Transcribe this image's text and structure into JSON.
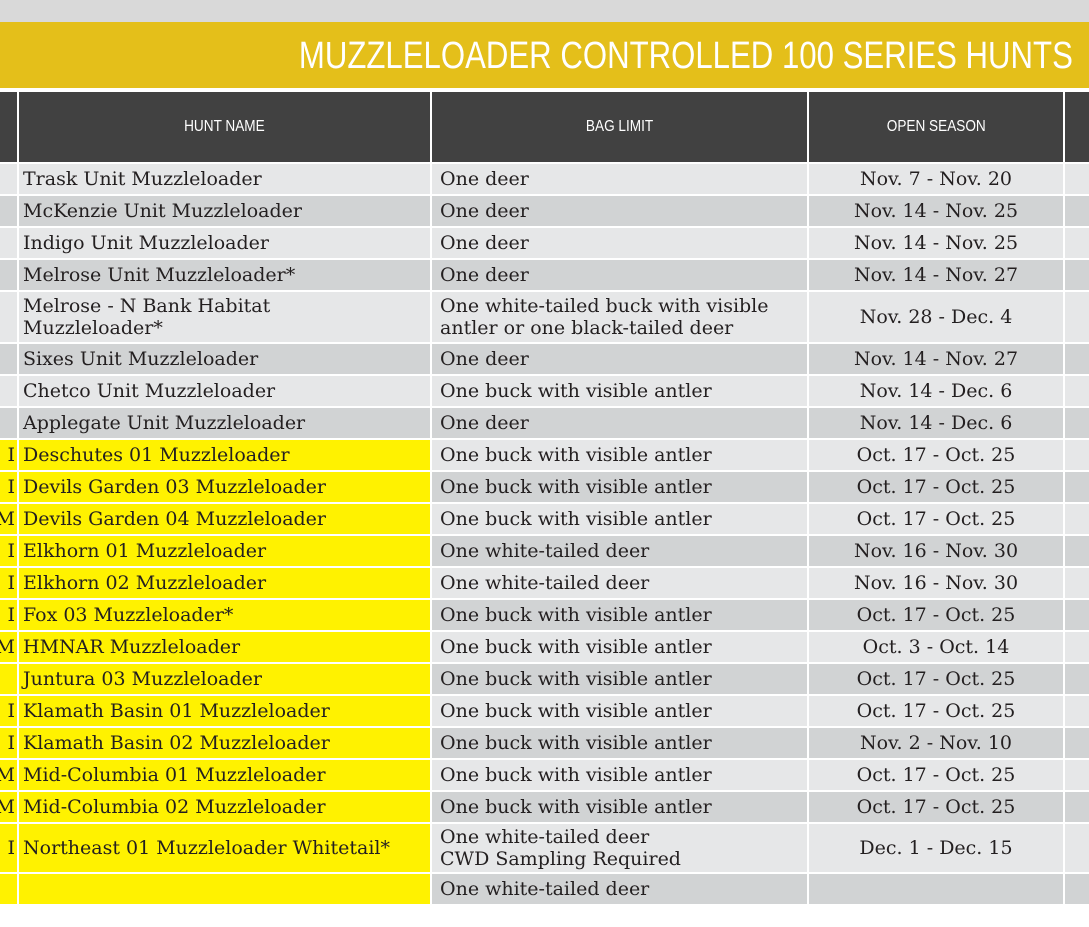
{
  "banner": {
    "title": "MUZZLELOADER CONTROLLED 100 SERIES HUNTS"
  },
  "table": {
    "headers": {
      "hunt_name": "HUNT NAME",
      "bag_limit": "BAG LIMIT",
      "open_season": "OPEN SEASON"
    },
    "colors": {
      "header_bg": "#414141",
      "banner_bg": "#e4bf1a",
      "row_light": "#e6e7e8",
      "row_dark": "#d1d3d4",
      "highlight": "#fff200"
    },
    "rows": [
      {
        "prefix": "",
        "hunt_name": [
          "Trask Unit Muzzleloader"
        ],
        "bag_limit": [
          "One deer"
        ],
        "open_season": "Nov. 7 - Nov. 20",
        "highlighted": false
      },
      {
        "prefix": "",
        "hunt_name": [
          "McKenzie Unit Muzzleloader"
        ],
        "bag_limit": [
          "One deer"
        ],
        "open_season": "Nov. 14 - Nov. 25",
        "highlighted": false
      },
      {
        "prefix": "",
        "hunt_name": [
          "Indigo Unit Muzzleloader"
        ],
        "bag_limit": [
          "One deer"
        ],
        "open_season": "Nov. 14 - Nov. 25",
        "highlighted": false
      },
      {
        "prefix": "",
        "hunt_name": [
          "Melrose Unit Muzzleloader*"
        ],
        "bag_limit": [
          "One deer"
        ],
        "open_season": "Nov. 14 - Nov. 27",
        "highlighted": false
      },
      {
        "prefix": "",
        "hunt_name": [
          "Melrose - N Bank Habitat",
          "Muzzleloader*"
        ],
        "bag_limit": [
          "One white-tailed buck with visible",
          "antler or one black-tailed deer"
        ],
        "open_season": "Nov. 28 - Dec. 4",
        "highlighted": false
      },
      {
        "prefix": "",
        "hunt_name": [
          "Sixes Unit Muzzleloader"
        ],
        "bag_limit": [
          "One deer"
        ],
        "open_season": "Nov. 14 - Nov. 27",
        "highlighted": false
      },
      {
        "prefix": "",
        "hunt_name": [
          "Chetco Unit Muzzleloader"
        ],
        "bag_limit": [
          "One buck with visible antler"
        ],
        "open_season": "Nov. 14 - Dec. 6",
        "highlighted": false
      },
      {
        "prefix": "",
        "hunt_name": [
          "Applegate Unit Muzzleloader"
        ],
        "bag_limit": [
          "One deer"
        ],
        "open_season": "Nov. 14 - Dec. 6",
        "highlighted": false
      },
      {
        "prefix": "I",
        "hunt_name": [
          "Deschutes 01 Muzzleloader"
        ],
        "bag_limit": [
          "One buck with visible antler"
        ],
        "open_season": "Oct. 17 - Oct. 25",
        "highlighted": true
      },
      {
        "prefix": "I",
        "hunt_name": [
          "Devils Garden 03 Muzzleloader"
        ],
        "bag_limit": [
          "One buck with visible antler"
        ],
        "open_season": "Oct. 17 - Oct. 25",
        "highlighted": true
      },
      {
        "prefix": "M",
        "hunt_name": [
          "Devils Garden 04 Muzzleloader"
        ],
        "bag_limit": [
          "One buck with visible antler"
        ],
        "open_season": "Oct. 17 - Oct. 25",
        "highlighted": true
      },
      {
        "prefix": "I",
        "hunt_name": [
          "Elkhorn 01 Muzzleloader"
        ],
        "bag_limit": [
          "One white-tailed deer"
        ],
        "open_season": "Nov. 16 - Nov. 30",
        "highlighted": true
      },
      {
        "prefix": "I",
        "hunt_name": [
          "Elkhorn 02 Muzzleloader"
        ],
        "bag_limit": [
          "One white-tailed deer"
        ],
        "open_season": "Nov. 16 - Nov. 30",
        "highlighted": true
      },
      {
        "prefix": "I",
        "hunt_name": [
          "Fox 03 Muzzleloader*"
        ],
        "bag_limit": [
          "One buck with visible antler"
        ],
        "open_season": "Oct. 17 - Oct. 25",
        "highlighted": true
      },
      {
        "prefix": "M",
        "hunt_name": [
          "HMNAR Muzzleloader"
        ],
        "bag_limit": [
          "One buck with visible antler"
        ],
        "open_season": "Oct. 3 - Oct. 14",
        "highlighted": true
      },
      {
        "prefix": "",
        "hunt_name": [
          "Juntura 03 Muzzleloader"
        ],
        "bag_limit": [
          "One buck with visible antler"
        ],
        "open_season": "Oct. 17 - Oct. 25",
        "highlighted": true
      },
      {
        "prefix": "I",
        "hunt_name": [
          "Klamath Basin 01 Muzzleloader"
        ],
        "bag_limit": [
          "One buck with visible antler"
        ],
        "open_season": "Oct. 17 - Oct. 25",
        "highlighted": true
      },
      {
        "prefix": "I",
        "hunt_name": [
          "Klamath Basin 02 Muzzleloader"
        ],
        "bag_limit": [
          "One buck with visible antler"
        ],
        "open_season": "Nov. 2 - Nov. 10",
        "highlighted": true
      },
      {
        "prefix": "M",
        "hunt_name": [
          "Mid-Columbia 01 Muzzleloader"
        ],
        "bag_limit": [
          "One buck with visible antler"
        ],
        "open_season": "Oct. 17 - Oct. 25",
        "highlighted": true
      },
      {
        "prefix": "M",
        "hunt_name": [
          "Mid-Columbia 02 Muzzleloader"
        ],
        "bag_limit": [
          "One buck with visible antler"
        ],
        "open_season": "Oct. 17 - Oct. 25",
        "highlighted": true
      },
      {
        "prefix": "I",
        "hunt_name": [
          "Northeast 01 Muzzleloader Whitetail*"
        ],
        "bag_limit": [
          "One white-tailed deer",
          "CWD Sampling Required"
        ],
        "open_season": "Dec. 1 - Dec. 15",
        "highlighted": true
      },
      {
        "prefix": "",
        "hunt_name": [
          ""
        ],
        "bag_limit": [
          "One white-tailed deer"
        ],
        "open_season": "",
        "highlighted": true
      }
    ]
  }
}
